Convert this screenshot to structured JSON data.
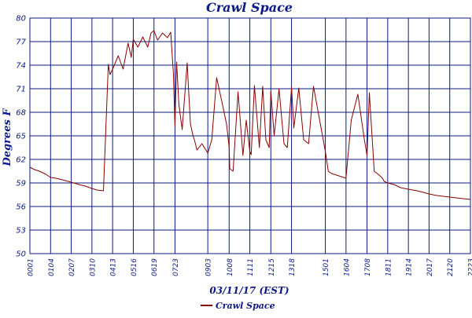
{
  "chart_data": {
    "type": "line",
    "title": "Crawl Space",
    "xlabel": "03/11/17 (EST)",
    "ylabel": "Degrees F",
    "ylim": [
      50,
      80
    ],
    "yticks": [
      "50",
      "53",
      "56",
      "59",
      "62",
      "65",
      "68",
      "71",
      "74",
      "77",
      "80"
    ],
    "xticks": [
      "0001",
      "0104",
      "0207",
      "0310",
      "0413",
      "0516",
      "0619",
      "0723",
      "0903",
      "1008",
      "1111",
      "1215",
      "1318",
      "1501",
      "1604",
      "1708",
      "1811",
      "1914",
      "2017",
      "2120",
      "2223"
    ],
    "grid": true,
    "legend": "bottom-center",
    "series": [
      {
        "name": "Crawl Space",
        "color": "#8b0000",
        "x": [
          "0001",
          "0015",
          "0030",
          "0050",
          "0104",
          "0120",
          "0140",
          "0207",
          "0230",
          "0250",
          "0310",
          "0325",
          "0345",
          "0400",
          "0405",
          "0413",
          "0430",
          "0445",
          "0500",
          "0510",
          "0516",
          "0530",
          "0545",
          "0600",
          "0610",
          "0619",
          "0630",
          "0645",
          "0700",
          "0710",
          "0718",
          "0723",
          "0728",
          "0735",
          "0745",
          "0800",
          "0810",
          "0818",
          "0822",
          "0830",
          "0845",
          "0903",
          "0915",
          "0930",
          "0945",
          "1000",
          "1008",
          "1010",
          "1020",
          "1035",
          "1050",
          "1100",
          "1111",
          "1115",
          "1125",
          "1140",
          "1150",
          "1200",
          "1210",
          "1215",
          "1225",
          "1240",
          "1255",
          "1305",
          "1318",
          "1325",
          "1340",
          "1355",
          "1410",
          "1425",
          "1501",
          "1510",
          "1520",
          "1535",
          "1550",
          "1604",
          "1620",
          "1640",
          "1700",
          "1708",
          "1715",
          "1730",
          "1745",
          "1755",
          "1800",
          "1811",
          "1830",
          "1850",
          "1914",
          "1940",
          "2000",
          "2017",
          "2040",
          "2100",
          "2120",
          "2140",
          "2200",
          "2223"
        ],
        "values": [
          61.0,
          60.7,
          60.5,
          60.1,
          59.7,
          59.6,
          59.4,
          59.1,
          58.8,
          58.6,
          58.3,
          58.1,
          58.0,
          74.1,
          72.8,
          73.5,
          75.2,
          73.5,
          76.8,
          75.0,
          77.3,
          76.3,
          77.6,
          76.3,
          78.1,
          78.4,
          77.2,
          78.1,
          77.5,
          78.2,
          73.0,
          66.2,
          74.4,
          69.0,
          65.8,
          74.3,
          66.5,
          65.0,
          64.5,
          63.2,
          64.0,
          62.8,
          64.5,
          72.4,
          69.5,
          66.5,
          63.5,
          60.8,
          60.5,
          70.6,
          62.5,
          67.0,
          63.0,
          62.6,
          71.4,
          63.5,
          71.3,
          64.5,
          63.5,
          70.7,
          65.0,
          71.0,
          64.0,
          63.5,
          71.2,
          66.0,
          71.1,
          64.5,
          64.0,
          71.3,
          63.0,
          60.5,
          60.2,
          60.0,
          59.8,
          59.6,
          67.0,
          70.3,
          64.5,
          62.5,
          70.5,
          60.5,
          60.0,
          59.6,
          59.2,
          59.0,
          58.8,
          58.4,
          58.2,
          58.0,
          57.8,
          57.6,
          57.4,
          57.3,
          57.2,
          57.1,
          57.0,
          56.9
        ]
      }
    ]
  }
}
